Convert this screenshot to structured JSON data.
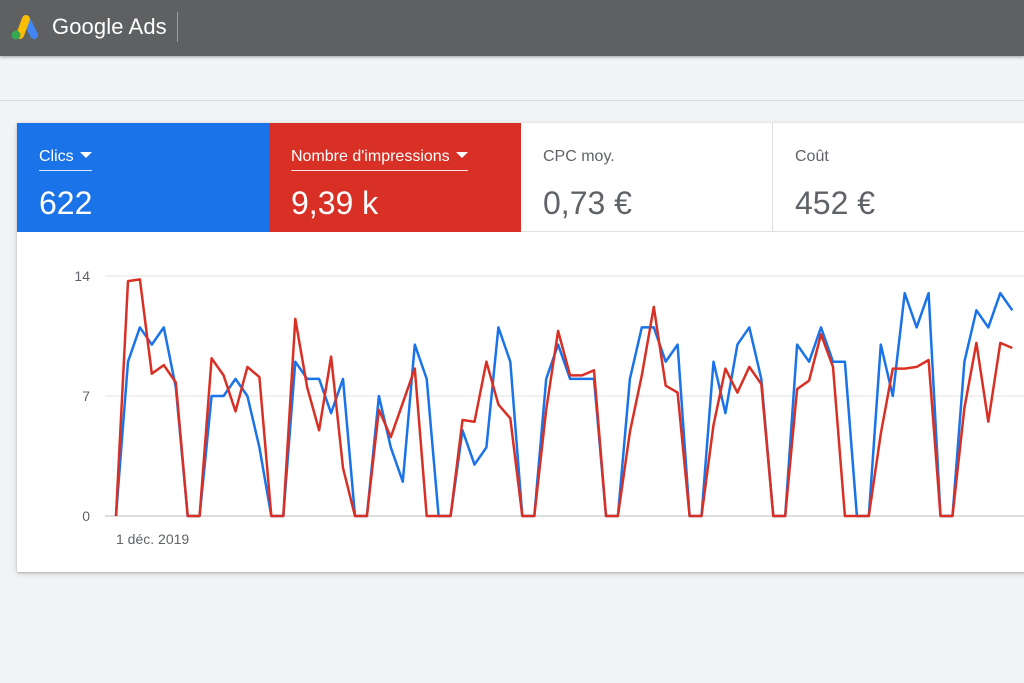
{
  "header": {
    "app_name": "Google Ads",
    "logo_colors": [
      "#fbbc04",
      "#4285f4",
      "#34a853"
    ]
  },
  "metrics": [
    {
      "label": "Clics",
      "value": "622",
      "selected": true,
      "color": "#1a73e8"
    },
    {
      "label": "Nombre d'impressions",
      "value": "9,39 k",
      "selected": true,
      "color": "#d93025"
    },
    {
      "label": "CPC moy.",
      "value": "0,73 €",
      "selected": false
    },
    {
      "label": "Coût",
      "value": "452 €",
      "selected": false
    }
  ],
  "chart_data": {
    "type": "line",
    "y_ticks": [
      "14",
      "7",
      "0"
    ],
    "ylim": [
      0,
      14
    ],
    "x_tick_label": "1 déc. 2019",
    "grid": true,
    "series": [
      {
        "color": "#1a73e8",
        "values": [
          0,
          9,
          11,
          10,
          11,
          7.5,
          0,
          0,
          7,
          7,
          8,
          7,
          4,
          0,
          0,
          9,
          8,
          8,
          6,
          8,
          0,
          0,
          7,
          4,
          2,
          10,
          8,
          0,
          0,
          5,
          3,
          4,
          11,
          9,
          0,
          0,
          8,
          10,
          8,
          8,
          8,
          0,
          0,
          8,
          11,
          11,
          9,
          10,
          0,
          0,
          9,
          6,
          10,
          11,
          8,
          0,
          0,
          10,
          9,
          11,
          9,
          9,
          0,
          0,
          10,
          7,
          13,
          11,
          13,
          0,
          0,
          9,
          12,
          11,
          13,
          12
        ]
      },
      {
        "color": "#d93025",
        "values": [
          0,
          13.7,
          13.8,
          8.3,
          8.8,
          7.8,
          0,
          0,
          9.2,
          8.2,
          6.1,
          8.7,
          8.1,
          0,
          0,
          11.5,
          7.5,
          5,
          9.3,
          2.8,
          0,
          0,
          6.2,
          4.6,
          6.6,
          8.6,
          0,
          0,
          0,
          5.6,
          5.5,
          9,
          6.5,
          5.7,
          0,
          0,
          6.2,
          10.8,
          8.2,
          8.2,
          8.5,
          0,
          0,
          4.9,
          8.2,
          12.2,
          7.6,
          7.2,
          0,
          0,
          5.3,
          8.6,
          7.2,
          8.7,
          7.7,
          0,
          0,
          7.4,
          7.9,
          10.6,
          8.7,
          0,
          0,
          0,
          4.8,
          8.6,
          8.6,
          8.7,
          9.1,
          0,
          0,
          6.3,
          10.1,
          5.5,
          10.1,
          9.8
        ]
      }
    ]
  }
}
